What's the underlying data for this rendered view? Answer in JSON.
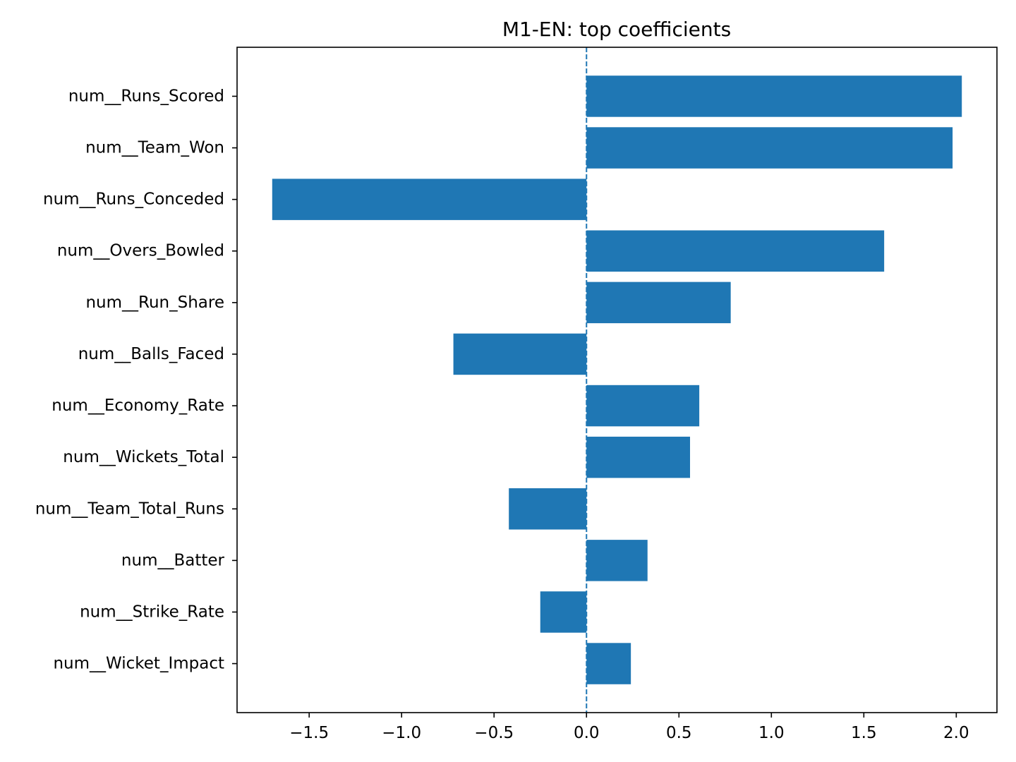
{
  "chart_data": {
    "type": "bar",
    "orientation": "horizontal",
    "title": "M1-EN: top coefficients",
    "xlabel": "",
    "ylabel": "",
    "categories": [
      "num__Runs_Scored",
      "num__Team_Won",
      "num__Runs_Conceded",
      "num__Overs_Bowled",
      "num__Run_Share",
      "num__Balls_Faced",
      "num__Economy_Rate",
      "num__Wickets_Total",
      "num__Team_Total_Runs",
      "num__Batter",
      "num__Strike_Rate",
      "num__Wicket_Impact"
    ],
    "values": [
      2.03,
      1.98,
      -1.7,
      1.61,
      0.78,
      -0.72,
      0.61,
      0.56,
      -0.42,
      0.33,
      -0.25,
      0.24
    ],
    "xlim": [
      -1.89,
      2.22
    ],
    "xticks": [
      -1.5,
      -1.0,
      -0.5,
      0.0,
      0.5,
      1.0,
      1.5,
      2.0
    ],
    "xtick_labels": [
      "−1.5",
      "−1.0",
      "−0.5",
      "0.0",
      "0.5",
      "1.0",
      "1.5",
      "2.0"
    ],
    "reference_line": {
      "x": 0.0,
      "style": "dashed"
    },
    "grid": false,
    "legend": false,
    "colors": {
      "bar": "#1f77b4",
      "reference_line": "#1f77b4",
      "axes": "#000000",
      "background": "#ffffff"
    }
  }
}
